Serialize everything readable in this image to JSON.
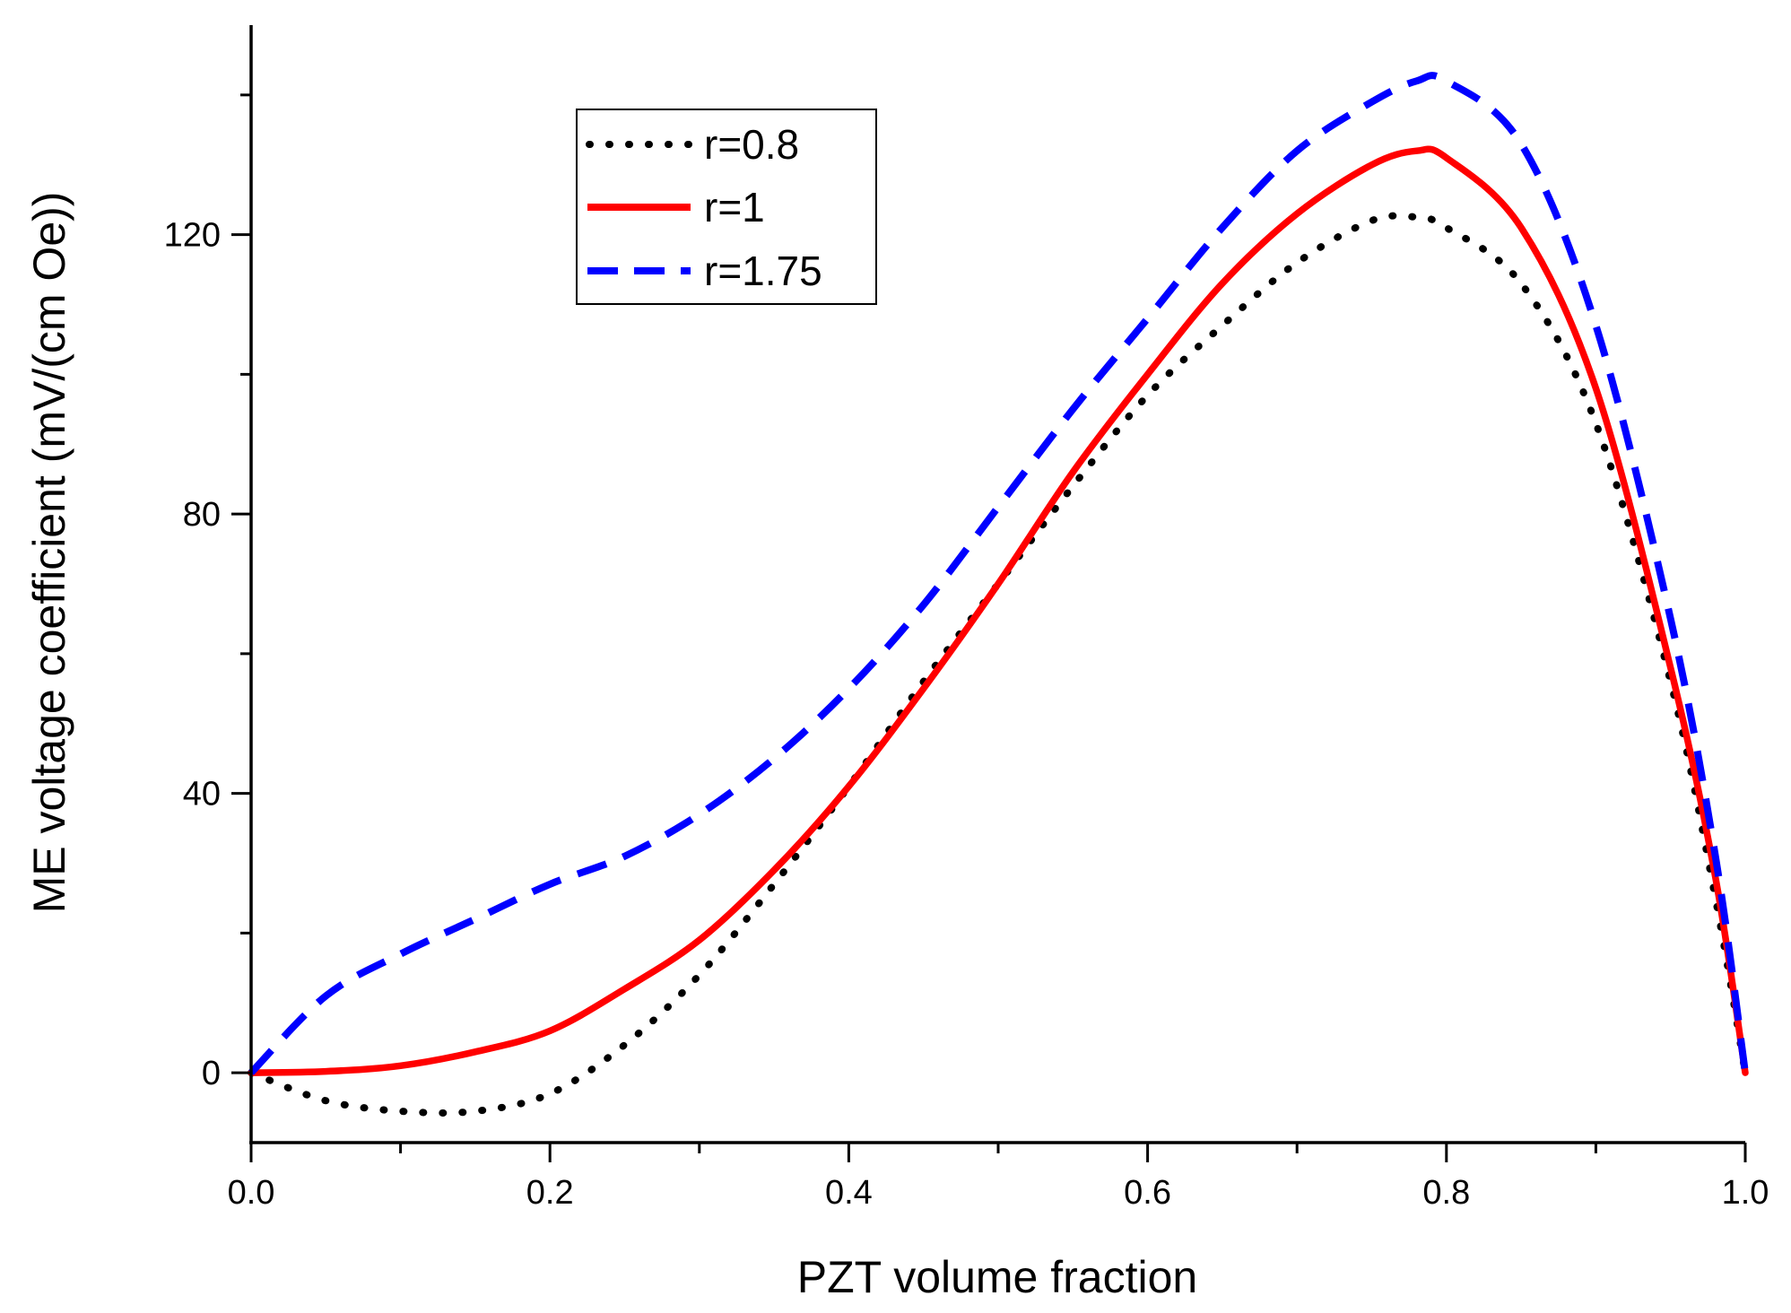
{
  "chart_data": {
    "type": "line",
    "title": "",
    "xlabel": "PZT volume fraction",
    "ylabel": "ME voltage coefficient (mV/(cm Oe))",
    "xlim": [
      0.0,
      1.0
    ],
    "ylim": [
      -10,
      150
    ],
    "x_ticks": [
      0.0,
      0.2,
      0.4,
      0.6,
      0.8,
      1.0
    ],
    "x_tick_labels": [
      "0.0",
      "0.2",
      "0.4",
      "0.6",
      "0.8",
      "1.0"
    ],
    "x_minor_ticks": [
      0.1,
      0.3,
      0.5,
      0.7,
      0.9
    ],
    "y_ticks": [
      0,
      40,
      80,
      120
    ],
    "y_tick_labels": [
      "0",
      "40",
      "80",
      "120"
    ],
    "y_minor_ticks": [
      20,
      60,
      100,
      140
    ],
    "grid": false,
    "legend_position": "top-left",
    "x": [
      0.0,
      0.05,
      0.1,
      0.15,
      0.2,
      0.25,
      0.3,
      0.35,
      0.4,
      0.45,
      0.5,
      0.55,
      0.6,
      0.65,
      0.7,
      0.75,
      0.78,
      0.8,
      0.85,
      0.9,
      0.95,
      0.98,
      1.0
    ],
    "series": [
      {
        "name": "r=0.8",
        "color": "#000000",
        "style": "dotted",
        "values": [
          0,
          -4,
          -5.5,
          -5.5,
          -3,
          4,
          14,
          27,
          41,
          56,
          70,
          84,
          97,
          107,
          116,
          122,
          122.5,
          121,
          113,
          93,
          56,
          25,
          0
        ]
      },
      {
        "name": "r=1",
        "color": "#ff0000",
        "style": "solid",
        "values": [
          0,
          0.2,
          1,
          3,
          6,
          12,
          19,
          29,
          41,
          55,
          70,
          86,
          100,
          113,
          123,
          130,
          132,
          131,
          121,
          98,
          58,
          28,
          0
        ]
      },
      {
        "name": "r=1.75",
        "color": "#0000ff",
        "style": "dashed",
        "values": [
          0,
          11,
          17,
          22,
          27,
          31,
          37,
          45,
          55,
          67,
          81,
          95,
          108,
          121,
          132,
          139,
          142,
          142,
          133,
          107,
          65,
          31,
          0
        ]
      }
    ]
  }
}
